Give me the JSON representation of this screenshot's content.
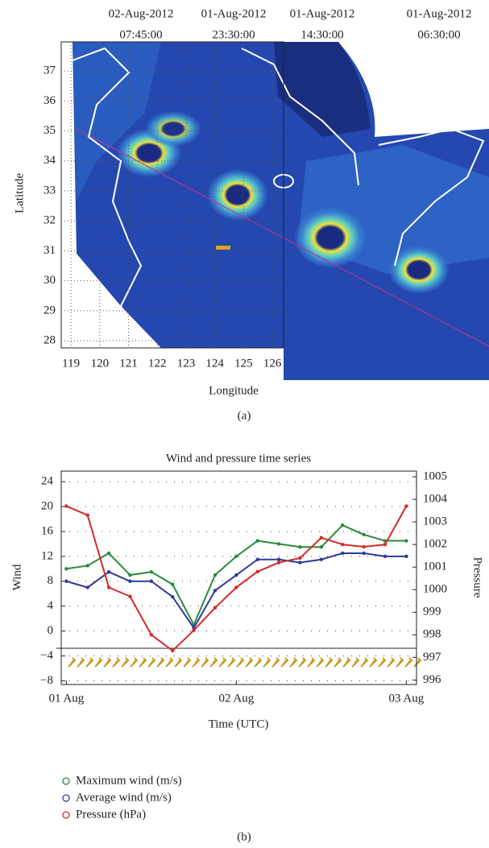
{
  "chart_data": [
    {
      "type": "map",
      "timestamps": [
        {
          "date": "02-Aug-2012",
          "time": "07:45:00"
        },
        {
          "date": "01-Aug-2012",
          "time": "23:30:00"
        },
        {
          "date": "01-Aug-2012",
          "time": "14:30:00"
        },
        {
          "date": "01-Aug-2012",
          "time": "06:30:00"
        }
      ],
      "xlabel": "Longitude",
      "ylabel": "Latitude",
      "xlim": [
        118.66,
        126.39
      ],
      "ylim": [
        27.76,
        37.97
      ],
      "xticks": [
        119,
        120,
        121,
        122,
        123,
        124,
        125,
        126
      ],
      "yticks": [
        28,
        29,
        30,
        31,
        32,
        33,
        34,
        35,
        36,
        37
      ],
      "grid": true,
      "caption": "(a)"
    },
    {
      "type": "line",
      "title": "Wind and pressure time series",
      "xlabel": "Time (UTC)",
      "ylabel": "Wind",
      "y2label": "Pressure",
      "x": [
        0,
        0.125,
        0.25,
        0.375,
        0.5,
        0.625,
        0.75,
        0.875,
        1,
        1.125,
        1.25,
        1.375,
        1.5,
        1.625,
        1.75,
        1.875,
        2
      ],
      "xlim": [
        -0.03,
        2.06
      ],
      "xticks": [
        {
          "value": 0,
          "label": "01 Aug"
        },
        {
          "value": 1,
          "label": "02 Aug"
        },
        {
          "value": 2,
          "label": "03 Aug"
        }
      ],
      "ylim": [
        -8.6,
        25.7
      ],
      "yticks": [
        {
          "value": -8,
          "label": "−8"
        },
        {
          "value": -4,
          "label": "−4"
        },
        0,
        4,
        8,
        12,
        16,
        20,
        24
      ],
      "y2lim": [
        995.8,
        1005.25
      ],
      "y2ticks": [
        996,
        997,
        998,
        999,
        1000,
        1001,
        1002,
        1003,
        1004,
        1005
      ],
      "grid": true,
      "series": [
        {
          "name": "Maximum wind (m/s)",
          "color": "#2a8a3a",
          "values": [
            10,
            10.5,
            12.5,
            9,
            9.5,
            7.5,
            1,
            9,
            12,
            14.5,
            14,
            13.5,
            13.5,
            17,
            15.5,
            14.5,
            14.5
          ]
        },
        {
          "name": "Average wind (m/s)",
          "color": "#2e3a9a",
          "values": [
            8,
            7,
            9.5,
            8,
            8,
            5.5,
            0.5,
            6.5,
            9,
            11.5,
            11.5,
            11,
            11.5,
            12.5,
            12.5,
            12,
            12
          ]
        },
        {
          "name": "Pressure (hPa)",
          "color": "#d62a2a",
          "axis": "y2",
          "values": [
            1003.7,
            1003.3,
            1000.1,
            999.7,
            998,
            997.3,
            998.2,
            999.2,
            1000.1,
            1000.8,
            1001.2,
            1001.4,
            1002.3,
            1002,
            1001.9,
            1002,
            1003.7
          ]
        }
      ],
      "caption": "(b)"
    }
  ]
}
